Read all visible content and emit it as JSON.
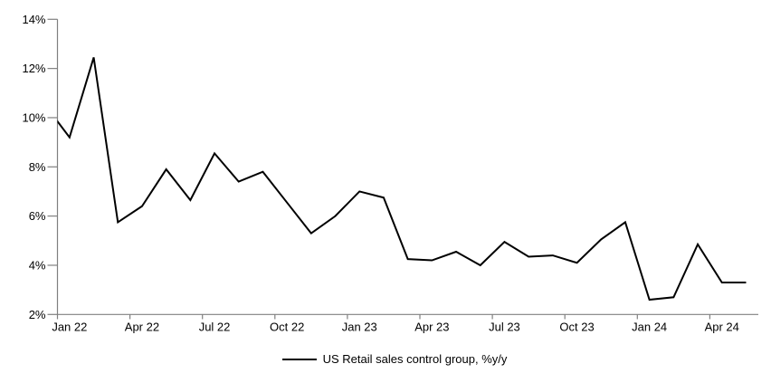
{
  "chart_data": {
    "type": "line",
    "title": "",
    "legend_label": "US Retail sales control group, %y/y",
    "legend_position": "bottom-center",
    "grid": false,
    "x": [
      "Jan 22",
      "Feb 22",
      "Mar 22",
      "Apr 22",
      "May 22",
      "Jun 22",
      "Jul 22",
      "Aug 22",
      "Sep 22",
      "Oct 22",
      "Nov 22",
      "Dec 22",
      "Jan 23",
      "Feb 23",
      "Mar 23",
      "Apr 23",
      "May 23",
      "Jun 23",
      "Jul 23",
      "Aug 23",
      "Sep 23",
      "Oct 23",
      "Nov 23",
      "Dec 23",
      "Jan 24",
      "Feb 24",
      "Mar 24",
      "Apr 24",
      "May 24"
    ],
    "series": [
      {
        "name": "US Retail sales control group, %y/y",
        "values": [
          9.2,
          12.45,
          5.75,
          6.4,
          7.9,
          6.65,
          8.55,
          7.4,
          7.8,
          6.55,
          5.3,
          6.0,
          7.0,
          6.75,
          4.25,
          4.2,
          4.55,
          4.0,
          4.95,
          4.35,
          4.4,
          4.1,
          5.05,
          5.75,
          2.6,
          2.7,
          4.85,
          3.3,
          3.3
        ],
        "color": "#000000"
      }
    ],
    "clipped_leadin_point": {
      "x": "Dec 21",
      "value": 10.5
    },
    "ylim": [
      2,
      14
    ],
    "ytick_step": 2,
    "ytick_labels": [
      "2%",
      "4%",
      "6%",
      "8%",
      "10%",
      "12%",
      "14%"
    ],
    "xtick_labels": [
      "Jan 22",
      "Apr 22",
      "Jul 22",
      "Oct 22",
      "Jan 23",
      "Apr 23",
      "Jul 23",
      "Oct 23",
      "Jan 24",
      "Apr 24"
    ],
    "xtick_label_interval_months": 3,
    "axis_color": "#808080",
    "text_color": "#000000"
  }
}
